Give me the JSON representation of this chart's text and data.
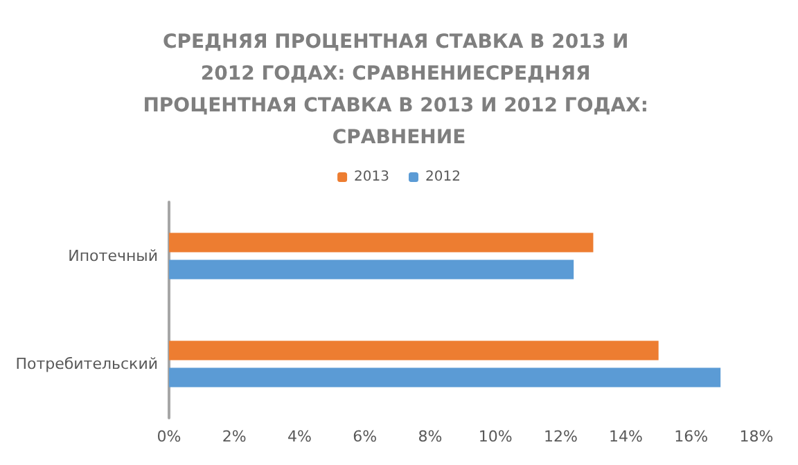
{
  "chart_data": {
    "type": "bar",
    "orientation": "horizontal",
    "title": "СРЕДНЯЯ ПРОЦЕНТНАЯ СТАВКА В 2013 И 2012 ГОДАХ: СРАВНЕНИЕСРЕДНЯЯ ПРОЦЕНТНАЯ СТАВКА В 2013 И 2012 ГОДАХ: СРАВНЕНИЕ",
    "categories": [
      "Ипотечный",
      "Потребительский"
    ],
    "series": [
      {
        "name": "2013",
        "color": "#ed7d31",
        "values": [
          13,
          15
        ]
      },
      {
        "name": "2012",
        "color": "#5b9bd5",
        "values": [
          12.4,
          16.9
        ]
      }
    ],
    "xlim": [
      0,
      18
    ],
    "xticks": [
      {
        "value": 0,
        "label": "0%"
      },
      {
        "value": 2,
        "label": "2%"
      },
      {
        "value": 4,
        "label": "4%"
      },
      {
        "value": 6,
        "label": "6%"
      },
      {
        "value": 8,
        "label": "8%"
      },
      {
        "value": 10,
        "label": "10%"
      },
      {
        "value": 12,
        "label": "12%"
      },
      {
        "value": 14,
        "label": "14%"
      },
      {
        "value": 16,
        "label": "16%"
      },
      {
        "value": 18,
        "label": "18%"
      }
    ],
    "grid": false,
    "legend": "top"
  }
}
